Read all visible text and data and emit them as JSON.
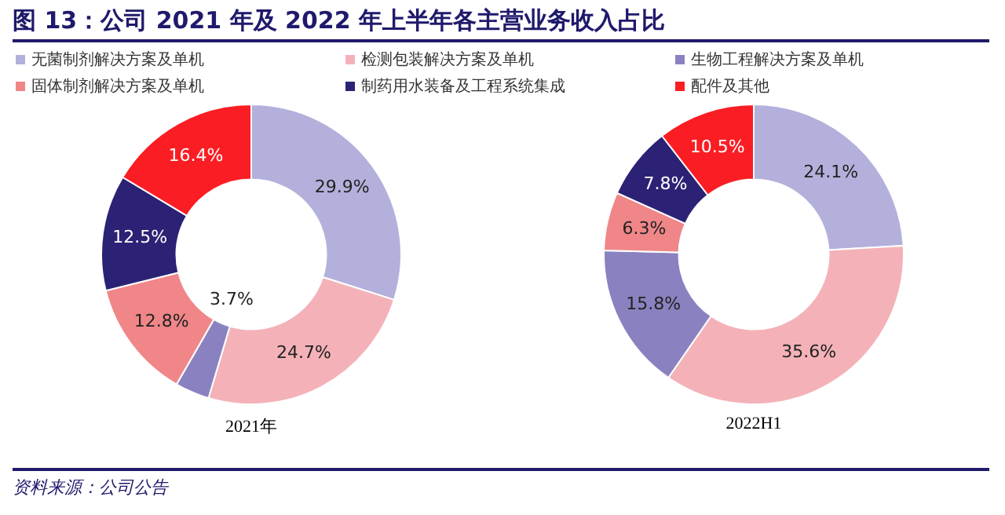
{
  "chart_data": [
    {
      "type": "donut",
      "title": "图 13：公司 2021 年及 2022 年上半年各主营业务收入占比",
      "xlabel": "2021年",
      "legend": "top",
      "annotations": [
        "资料来源：公司公告"
      ],
      "categories": [
        "无菌制剂解决方案及单机",
        "检测包装解决方案及单机",
        "生物工程解决方案及单机",
        "固体制剂解决方案及单机",
        "制药用水装备及工程系统集成",
        "配件及其他"
      ],
      "values": [
        29.9,
        24.7,
        3.7,
        12.8,
        12.5,
        16.4
      ],
      "value_labels": [
        "29.9%",
        "24.7%",
        "3.7%",
        "12.8%",
        "12.5%",
        "16.4%"
      ],
      "colors": [
        "#b4b0dc",
        "#f4b2b8",
        "#8a82c0",
        "#f08688",
        "#2b2275",
        "#fa1e24"
      ]
    },
    {
      "type": "donut",
      "xlabel": "2022H1",
      "categories": [
        null,
        null,
        null,
        null,
        null,
        null
      ],
      "values": [
        24.1,
        35.6,
        15.8,
        6.3,
        7.8,
        10.5
      ],
      "value_labels": [
        "24.1%",
        "35.6%",
        "15.8%",
        "6.3%",
        "7.8%",
        "10.5%"
      ],
      "colors": [
        "#b4b0dc",
        "#f4b2b8",
        "#8a82c0",
        "#f08688",
        "#2b2275",
        "#fa1e24"
      ]
    }
  ]
}
